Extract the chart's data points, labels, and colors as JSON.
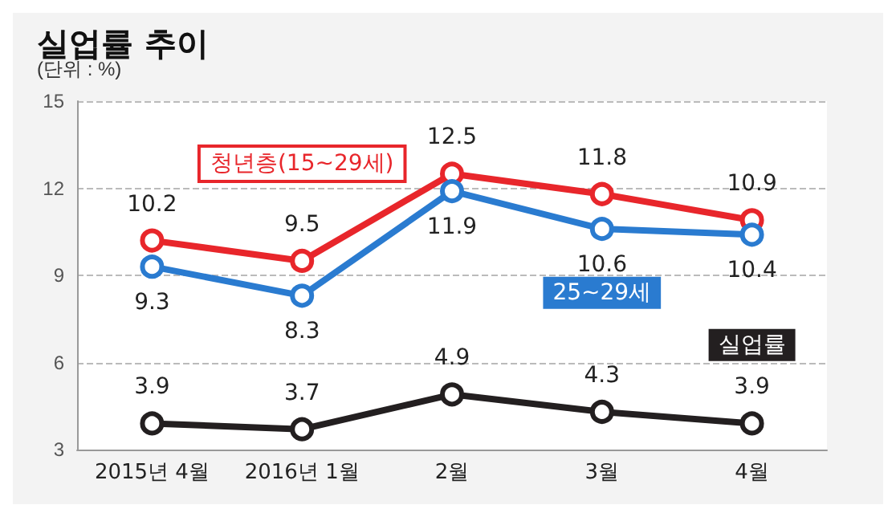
{
  "chart_data": {
    "type": "line",
    "title": "실업률 추이",
    "subtitle": "(단위 : %)",
    "categories": [
      "2015년 4월",
      "2016년 1월",
      "2월",
      "3월",
      "4월"
    ],
    "series": [
      {
        "name": "청년층(15~29세)",
        "color": "#e8262b",
        "values": [
          10.2,
          9.5,
          12.5,
          11.8,
          10.9
        ]
      },
      {
        "name": "25~29세",
        "color": "#2a7bd0",
        "values": [
          9.3,
          8.3,
          11.9,
          10.6,
          10.4
        ]
      },
      {
        "name": "실업률",
        "color": "#231f20",
        "values": [
          3.9,
          3.7,
          4.9,
          4.3,
          3.9
        ]
      }
    ],
    "ylim": [
      3,
      15
    ],
    "yticks": [
      3,
      6,
      9,
      12,
      15
    ],
    "grid": "y",
    "legend": false,
    "marker": "circle",
    "line_style": "solid",
    "data_labels": true
  }
}
